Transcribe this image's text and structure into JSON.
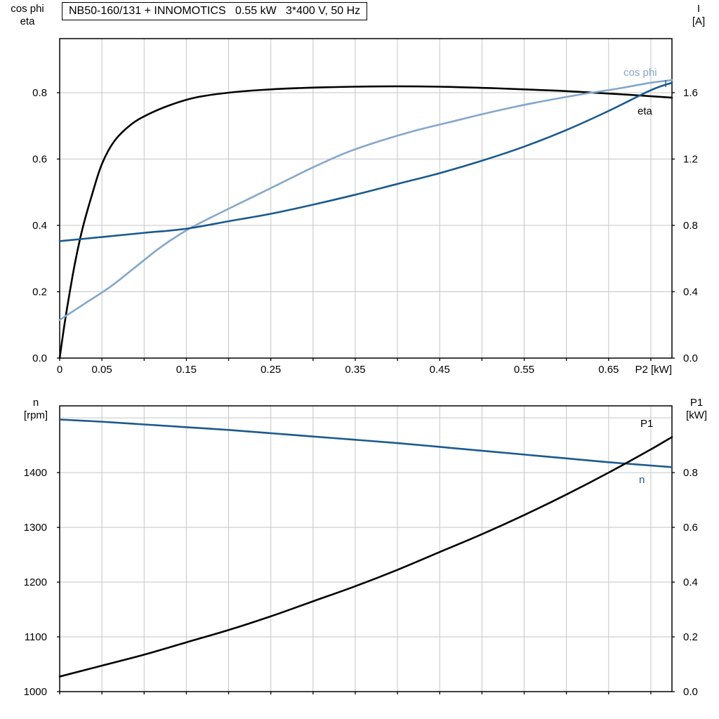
{
  "title": "NB50-160/131 + INNOMOTICS   0.55 kW   3*400 V, 50 Hz",
  "labels": {
    "top_left_line1": "cos phi",
    "top_left_line2": "eta",
    "top_right_line1": "I",
    "top_right_line2": "[A]",
    "bottom_left_line1": "n",
    "bottom_left_line2": "[rpm]",
    "bottom_right_line1": "P1",
    "bottom_right_line2": "[kW]"
  },
  "colors": {
    "black": "#000000",
    "dark_blue": "#1a5a8e",
    "light_blue": "#84a7cb",
    "grid": "#c6c6c6",
    "frame": "#000000"
  },
  "chart_data": [
    {
      "type": "line",
      "name": "efficiency-powerfactor-current",
      "x_axis": {
        "label": "P2 [kW]",
        "min": 0,
        "max": 0.725,
        "grid_step": 0.05,
        "ticks": [
          {
            "v": 0,
            "label": "0"
          },
          {
            "v": 0.05,
            "label": "0.05"
          },
          {
            "v": 0.15,
            "label": "0.15"
          },
          {
            "v": 0.25,
            "label": "0.25"
          },
          {
            "v": 0.35,
            "label": "0.35"
          },
          {
            "v": 0.45,
            "label": "0.45"
          },
          {
            "v": 0.55,
            "label": "0.55"
          },
          {
            "v": 0.65,
            "label": "0.65"
          }
        ],
        "show_tick_labels": true
      },
      "left_axis": {
        "min": 0,
        "max": 0.963,
        "grid_step": 0.2,
        "ticks": [
          {
            "v": 0.0,
            "label": "0.0"
          },
          {
            "v": 0.2,
            "label": "0.2"
          },
          {
            "v": 0.4,
            "label": "0.4"
          },
          {
            "v": 0.6,
            "label": "0.6"
          },
          {
            "v": 0.8,
            "label": "0.8"
          }
        ]
      },
      "right_axis": {
        "min": 0,
        "max": 1.926,
        "ticks": [
          {
            "v": 0.0,
            "label": "0.0"
          },
          {
            "v": 0.4,
            "label": "0.4"
          },
          {
            "v": 0.8,
            "label": "0.8"
          },
          {
            "v": 1.2,
            "label": "1.2"
          },
          {
            "v": 1.6,
            "label": "1.6"
          }
        ]
      },
      "series": [
        {
          "name": "eta",
          "color": "black",
          "axis": "left",
          "label": {
            "text": "eta",
            "x": 908,
            "y": 163,
            "color": "black"
          },
          "points": [
            [
              0,
              0
            ],
            [
              0.005,
              0.09
            ],
            [
              0.01,
              0.17
            ],
            [
              0.018,
              0.285
            ],
            [
              0.027,
              0.39
            ],
            [
              0.038,
              0.49
            ],
            [
              0.05,
              0.585
            ],
            [
              0.065,
              0.655
            ],
            [
              0.085,
              0.705
            ],
            [
              0.105,
              0.735
            ],
            [
              0.13,
              0.762
            ],
            [
              0.16,
              0.785
            ],
            [
              0.2,
              0.8
            ],
            [
              0.25,
              0.81
            ],
            [
              0.31,
              0.816
            ],
            [
              0.38,
              0.819
            ],
            [
              0.45,
              0.818
            ],
            [
              0.52,
              0.813
            ],
            [
              0.59,
              0.806
            ],
            [
              0.66,
              0.796
            ],
            [
              0.725,
              0.785
            ]
          ]
        },
        {
          "name": "cos phi",
          "color": "light_blue",
          "axis": "left",
          "label": {
            "text": "cos phi",
            "x": 888,
            "y": 108,
            "color": "light_blue"
          },
          "points": [
            [
              0,
              0.115
            ],
            [
              0.03,
              0.165
            ],
            [
              0.06,
              0.215
            ],
            [
              0.09,
              0.275
            ],
            [
              0.12,
              0.335
            ],
            [
              0.15,
              0.385
            ],
            [
              0.18,
              0.425
            ],
            [
              0.22,
              0.475
            ],
            [
              0.26,
              0.525
            ],
            [
              0.3,
              0.575
            ],
            [
              0.34,
              0.62
            ],
            [
              0.38,
              0.655
            ],
            [
              0.42,
              0.685
            ],
            [
              0.46,
              0.71
            ],
            [
              0.5,
              0.735
            ],
            [
              0.54,
              0.758
            ],
            [
              0.58,
              0.778
            ],
            [
              0.62,
              0.796
            ],
            [
              0.66,
              0.812
            ],
            [
              0.7,
              0.83
            ],
            [
              0.725,
              0.838
            ]
          ]
        },
        {
          "name": "I",
          "color": "dark_blue",
          "axis": "right",
          "label": {
            "text": "I",
            "x": 946,
            "y": 124,
            "color": "dark_blue"
          },
          "points": [
            [
              0,
              0.705
            ],
            [
              0.05,
              0.73
            ],
            [
              0.1,
              0.755
            ],
            [
              0.15,
              0.78
            ],
            [
              0.2,
              0.825
            ],
            [
              0.25,
              0.87
            ],
            [
              0.3,
              0.925
            ],
            [
              0.35,
              0.985
            ],
            [
              0.4,
              1.05
            ],
            [
              0.45,
              1.115
            ],
            [
              0.5,
              1.19
            ],
            [
              0.55,
              1.275
            ],
            [
              0.6,
              1.375
            ],
            [
              0.65,
              1.49
            ],
            [
              0.7,
              1.615
            ],
            [
              0.725,
              1.66
            ]
          ]
        }
      ]
    },
    {
      "type": "line",
      "name": "speed-inputpower",
      "x_axis": {
        "label": "",
        "min": 0,
        "max": 0.725,
        "grid_step": 0.05,
        "ticks": [],
        "show_tick_labels": false
      },
      "left_axis": {
        "min": 1000,
        "max": 1522,
        "grid_step": 100,
        "ticks": [
          {
            "v": 1000,
            "label": "1000"
          },
          {
            "v": 1100,
            "label": "1100"
          },
          {
            "v": 1200,
            "label": "1200"
          },
          {
            "v": 1300,
            "label": "1300"
          },
          {
            "v": 1400,
            "label": "1400"
          }
        ]
      },
      "right_axis": {
        "min": 0,
        "max": 1.044,
        "ticks": [
          {
            "v": 0.0,
            "label": "0.0"
          },
          {
            "v": 0.2,
            "label": "0.2"
          },
          {
            "v": 0.4,
            "label": "0.4"
          },
          {
            "v": 0.6,
            "label": "0.6"
          },
          {
            "v": 0.8,
            "label": "0.8"
          }
        ]
      },
      "series": [
        {
          "name": "n",
          "color": "dark_blue",
          "axis": "left",
          "label": {
            "text": "n",
            "x": 910,
            "y": 688,
            "color": "dark_blue"
          },
          "points": [
            [
              0,
              1497
            ],
            [
              0.05,
              1493
            ],
            [
              0.1,
              1488
            ],
            [
              0.15,
              1483
            ],
            [
              0.2,
              1478
            ],
            [
              0.25,
              1472
            ],
            [
              0.3,
              1466
            ],
            [
              0.35,
              1460
            ],
            [
              0.4,
              1454
            ],
            [
              0.45,
              1447
            ],
            [
              0.5,
              1440
            ],
            [
              0.55,
              1433
            ],
            [
              0.6,
              1426
            ],
            [
              0.65,
              1419
            ],
            [
              0.7,
              1413
            ],
            [
              0.725,
              1410
            ]
          ]
        },
        {
          "name": "P1",
          "color": "black",
          "axis": "right",
          "label": {
            "text": "P1",
            "x": 912,
            "y": 608,
            "color": "black"
          },
          "points": [
            [
              0,
              0.055
            ],
            [
              0.05,
              0.095
            ],
            [
              0.1,
              0.135
            ],
            [
              0.15,
              0.18
            ],
            [
              0.2,
              0.225
            ],
            [
              0.25,
              0.275
            ],
            [
              0.3,
              0.33
            ],
            [
              0.35,
              0.385
            ],
            [
              0.4,
              0.445
            ],
            [
              0.45,
              0.51
            ],
            [
              0.5,
              0.575
            ],
            [
              0.55,
              0.645
            ],
            [
              0.6,
              0.72
            ],
            [
              0.65,
              0.8
            ],
            [
              0.7,
              0.885
            ],
            [
              0.725,
              0.93
            ]
          ]
        }
      ]
    }
  ]
}
